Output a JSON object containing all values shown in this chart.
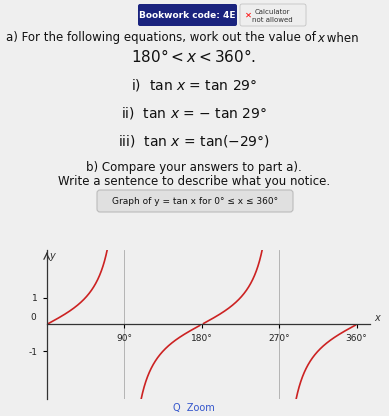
{
  "bg_color": "#efefef",
  "header_box_text": "Bookwork code: 4E",
  "header_calc_text": "Calculator\nnot allowed",
  "line1": "a) For the following equations, work out the value of x when",
  "line2": "180° < x < 360°.",
  "eq_i": "i) tan x = tan 29°",
  "eq_ii": "ii) tan x = − tan 29°",
  "eq_iii": "iii) tan x = tan(−29°)",
  "part_b1": "b) Compare your answers to part a).",
  "part_b2": "Write a sentence to describe what you notice.",
  "graph_title": "Graph of y = tan x for 0° ≤ x ≤ 360°",
  "curve_color": "#cc2222",
  "axis_color": "#333333",
  "text_color": "#111111",
  "zoom_text": "Q  Zoom",
  "ylim": [
    -2.8,
    2.8
  ],
  "xlim": [
    0,
    375
  ]
}
